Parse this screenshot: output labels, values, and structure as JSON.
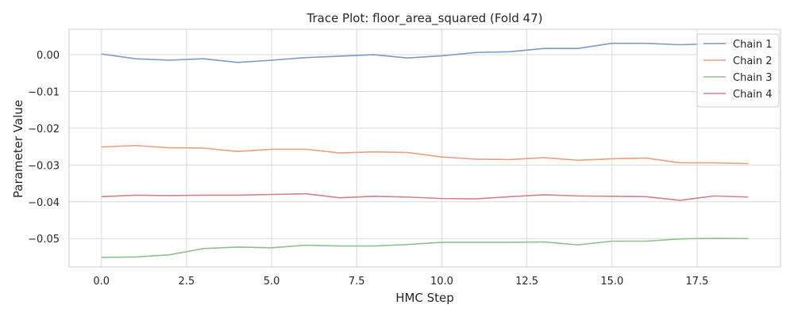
{
  "chart_data": {
    "type": "line",
    "title": "Trace Plot: floor_area_squared (Fold 47)",
    "xlabel": "HMC Step",
    "ylabel": "Parameter Value",
    "xlim": [
      -0.95,
      19.95
    ],
    "ylim": [
      -0.0577,
      0.0069
    ],
    "x_ticks": [
      0.0,
      2.5,
      5.0,
      7.5,
      10.0,
      12.5,
      15.0,
      17.5
    ],
    "x_tick_labels": [
      "0.0",
      "2.5",
      "5.0",
      "7.5",
      "10.0",
      "12.5",
      "15.0",
      "17.5"
    ],
    "y_ticks": [
      0.0,
      -0.01,
      -0.02,
      -0.03,
      -0.04,
      -0.05
    ],
    "y_tick_labels": [
      "0.00",
      "−0.01",
      "−0.02",
      "−0.03",
      "−0.04",
      "−0.05"
    ],
    "grid": true,
    "legend_position": "top-right",
    "x": [
      0,
      1,
      2,
      3,
      4,
      5,
      6,
      7,
      8,
      9,
      10,
      11,
      12,
      13,
      14,
      15,
      16,
      17,
      18,
      19
    ],
    "series": [
      {
        "name": "Chain 1",
        "color": "#7b9bc2",
        "values": [
          0.0002,
          -0.0011,
          -0.0015,
          -0.0011,
          -0.0021,
          -0.0015,
          -0.0008,
          -0.0004,
          0.0,
          -0.0009,
          -0.0003,
          0.0006,
          0.0008,
          0.0017,
          0.0017,
          0.0031,
          0.0031,
          0.0027,
          0.003,
          0.0032
        ]
      },
      {
        "name": "Chain 2",
        "color": "#e8a07e",
        "values": [
          -0.0251,
          -0.0247,
          -0.0253,
          -0.0254,
          -0.0263,
          -0.0257,
          -0.0257,
          -0.0267,
          -0.0264,
          -0.0266,
          -0.0278,
          -0.0284,
          -0.0285,
          -0.028,
          -0.0287,
          -0.0283,
          -0.0281,
          -0.0294,
          -0.0294,
          -0.0296
        ]
      },
      {
        "name": "Chain 3",
        "color": "#8cc08f",
        "values": [
          -0.0551,
          -0.055,
          -0.0544,
          -0.0527,
          -0.0523,
          -0.0525,
          -0.0518,
          -0.052,
          -0.052,
          -0.0516,
          -0.051,
          -0.051,
          -0.051,
          -0.0509,
          -0.0517,
          -0.0507,
          -0.0507,
          -0.0501,
          -0.0499,
          -0.05
        ]
      },
      {
        "name": "Chain 4",
        "color": "#d87e86",
        "values": [
          -0.0386,
          -0.0382,
          -0.0383,
          -0.0382,
          -0.0382,
          -0.038,
          -0.0378,
          -0.0389,
          -0.0385,
          -0.0387,
          -0.0391,
          -0.0392,
          -0.0386,
          -0.0381,
          -0.0384,
          -0.0385,
          -0.0386,
          -0.0396,
          -0.0384,
          -0.0387
        ]
      }
    ]
  }
}
